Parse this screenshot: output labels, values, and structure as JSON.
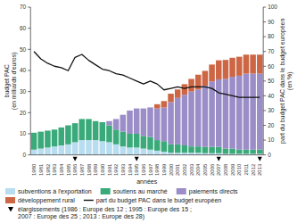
{
  "chart_data": {
    "type": "bar",
    "stacked": true,
    "grid": false,
    "legend": "bottom",
    "xlabel": "années",
    "ylabel": "budget PAC\n(en milliards d'euros)",
    "y2label": "part du budget PAC dans le budget européen\n(en %)",
    "categories": [
      1980,
      1981,
      1982,
      1983,
      1984,
      1985,
      1986,
      1987,
      1988,
      1989,
      1990,
      1991,
      1992,
      1993,
      1994,
      1995,
      1996,
      1997,
      1998,
      1999,
      2000,
      2001,
      2002,
      2003,
      2004,
      2005,
      2006,
      2007,
      2008,
      2009,
      2010,
      2011,
      2012,
      2013
    ],
    "series": [
      {
        "name": "subventions à l'exportation",
        "color": "#b8ddf0",
        "values": [
          2.5,
          3,
          3.5,
          4,
          4.5,
          5,
          6,
          7,
          7,
          7,
          6.5,
          6,
          5,
          4,
          3.5,
          3.5,
          3,
          2.5,
          2,
          1.5,
          1,
          1,
          1,
          1,
          1,
          0.8,
          0.8,
          0.8,
          0.5,
          0.5,
          0.5,
          0.5,
          0.5,
          0.5
        ]
      },
      {
        "name": "soutiens au marché",
        "color": "#3aaa7a",
        "values": [
          8,
          8,
          8,
          8,
          8.5,
          9,
          9,
          10,
          10,
          9,
          9,
          8,
          7,
          7,
          6.5,
          6.5,
          6,
          6,
          5,
          5,
          4,
          4,
          3.5,
          3,
          3,
          3,
          3,
          3,
          2.5,
          2.5,
          2,
          2,
          2,
          2
        ]
      },
      {
        "name": "paiements directs",
        "color": "#9b8dc8",
        "values": [
          0,
          0,
          0,
          0,
          0,
          0,
          0,
          0,
          0,
          0,
          0,
          2,
          5,
          8,
          11,
          12,
          13,
          14,
          15,
          16,
          20,
          22,
          24,
          26,
          27,
          29,
          31,
          32,
          33,
          34,
          35,
          36,
          36,
          36
        ]
      },
      {
        "name": "développement rural",
        "color": "#cc6644",
        "values": [
          0,
          0,
          0,
          0,
          0,
          0,
          0,
          0,
          0,
          0,
          0,
          0,
          0,
          0,
          0,
          0,
          0,
          0,
          2,
          3,
          4,
          4,
          5,
          6,
          7,
          7,
          8,
          9,
          9,
          9,
          9,
          9,
          9,
          9
        ]
      },
      {
        "name": "part du budget PAC dans le budget européen",
        "type": "line",
        "axis": "y2",
        "color": "#111111",
        "values": [
          70,
          65,
          62,
          60,
          59,
          57,
          66,
          68,
          64,
          61,
          58,
          57,
          55,
          54,
          52,
          50,
          48,
          50,
          48,
          44,
          45,
          46,
          45,
          46,
          46,
          46,
          45,
          42,
          41,
          40,
          39,
          39,
          39,
          39
        ]
      }
    ],
    "enlargements": {
      "label": "élargissements (1986 : Europe des 12 ; 1995 : Europe des 15 ;\n2007 : Europe des 25 ; 2013 : Europe des 28)",
      "categories": [
        1986,
        1995,
        2007,
        2013
      ],
      "marker": "triangle-down",
      "color": "black"
    },
    "ylim": [
      0,
      70
    ],
    "yticks": [
      0,
      10,
      20,
      30,
      40,
      50,
      60,
      70
    ],
    "y2lim": [
      0,
      100
    ],
    "y2ticks": [
      0,
      10,
      20,
      30,
      40,
      50,
      60,
      70,
      80,
      90,
      100
    ]
  }
}
